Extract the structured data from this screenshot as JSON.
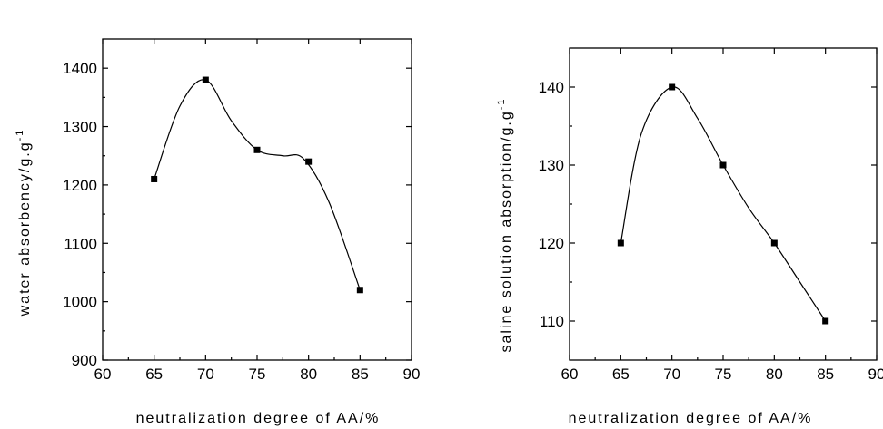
{
  "chart_data": [
    {
      "type": "line",
      "xlabel": "neutralization degree of AA/%",
      "ylabel": "water absorbency/g.g",
      "ylabel_superscript": "-1",
      "xlim": [
        60,
        90
      ],
      "ylim": [
        900,
        1450
      ],
      "xticks": [
        60,
        65,
        70,
        75,
        80,
        85,
        90
      ],
      "yticks": [
        900,
        1000,
        1100,
        1200,
        1300,
        1400
      ],
      "grid": false,
      "series": [
        {
          "x": [
            65,
            70,
            75,
            80,
            85
          ],
          "y": [
            1210,
            1380,
            1260,
            1240,
            1020
          ]
        }
      ],
      "curve_points": [
        [
          65,
          1210
        ],
        [
          67.5,
          1335
        ],
        [
          70,
          1380
        ],
        [
          72.5,
          1310
        ],
        [
          75,
          1260
        ],
        [
          77.5,
          1250
        ],
        [
          79.5,
          1245
        ],
        [
          82,
          1170
        ],
        [
          85,
          1020
        ]
      ]
    },
    {
      "type": "line",
      "xlabel": "neutralization degree of AA/%",
      "ylabel": "saline solution absorption/g.g",
      "ylabel_superscript": "-1",
      "xlim": [
        60,
        90
      ],
      "ylim": [
        105,
        145
      ],
      "xticks": [
        60,
        65,
        70,
        75,
        80,
        85,
        90
      ],
      "yticks": [
        110,
        120,
        130,
        140
      ],
      "grid": false,
      "series": [
        {
          "x": [
            65,
            70,
            75,
            80,
            85
          ],
          "y": [
            120,
            140,
            130,
            120,
            110
          ]
        }
      ],
      "curve_points": [
        [
          65,
          120
        ],
        [
          67,
          134
        ],
        [
          70,
          140
        ],
        [
          72.5,
          136
        ],
        [
          75,
          130
        ],
        [
          77.5,
          124.5
        ],
        [
          80,
          120
        ],
        [
          82.5,
          115
        ],
        [
          85,
          110
        ]
      ]
    }
  ]
}
